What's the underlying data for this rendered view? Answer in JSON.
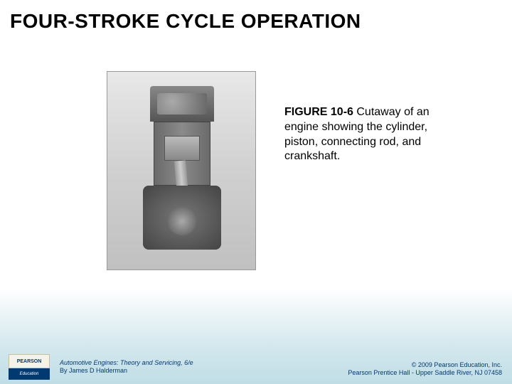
{
  "title": "FOUR-STROKE CYCLE OPERATION",
  "caption": {
    "label": "FIGURE 10-6",
    "text": "Cutaway of an engine showing the cylinder, piston, connecting rod, and crankshaft."
  },
  "logo": {
    "brand": "PEARSON",
    "line": "Education"
  },
  "book": {
    "title": "Automotive Engines: Theory and Servicing, 6/e",
    "author": "By James D Halderman"
  },
  "copyright": {
    "line1": "© 2009 Pearson Education, Inc.",
    "line2": "Pearson Prentice Hall - Upper Saddle River, NJ 07458"
  }
}
